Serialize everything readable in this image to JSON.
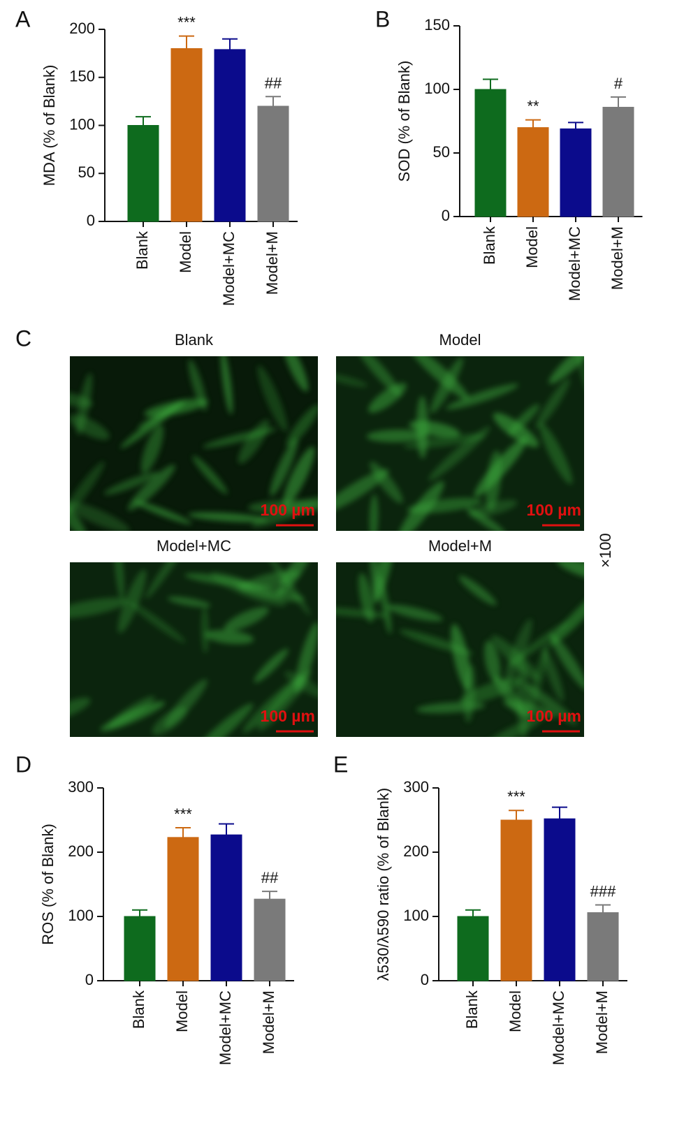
{
  "chart_data": [
    {
      "type": "bar",
      "panel": "A",
      "ylabel": "MDA (% of Blank)",
      "categories": [
        "Blank",
        "Model",
        "Model+MC",
        "Model+M"
      ],
      "values": [
        100,
        180,
        179,
        120
      ],
      "errors": [
        9,
        13,
        11,
        10
      ],
      "annotations": [
        null,
        "***",
        null,
        "##"
      ],
      "colors": [
        "#0e6b1e",
        "#cc6912",
        "#0b0b8c",
        "#7a7a7a"
      ],
      "ylim": [
        0,
        200
      ],
      "yticks": [
        0,
        50,
        100,
        150,
        200
      ]
    },
    {
      "type": "bar",
      "panel": "B",
      "ylabel": "SOD (% of Blank)",
      "categories": [
        "Blank",
        "Model",
        "Model+MC",
        "Model+M"
      ],
      "values": [
        100,
        70,
        69,
        86
      ],
      "errors": [
        8,
        6,
        5,
        8
      ],
      "annotations": [
        null,
        "**",
        null,
        "#"
      ],
      "colors": [
        "#0e6b1e",
        "#cc6912",
        "#0b0b8c",
        "#7a7a7a"
      ],
      "ylim": [
        0,
        150
      ],
      "yticks": [
        0,
        50,
        100,
        150
      ]
    },
    {
      "type": "bar",
      "panel": "D",
      "ylabel": "ROS (% of Blank)",
      "categories": [
        "Blank",
        "Model",
        "Model+MC",
        "Model+M"
      ],
      "values": [
        100,
        223,
        227,
        127
      ],
      "errors": [
        10,
        15,
        17,
        12
      ],
      "annotations": [
        null,
        "***",
        null,
        "##"
      ],
      "colors": [
        "#0e6b1e",
        "#cc6912",
        "#0b0b8c",
        "#7a7a7a"
      ],
      "ylim": [
        0,
        300
      ],
      "yticks": [
        0,
        100,
        200,
        300
      ]
    },
    {
      "type": "bar",
      "panel": "E",
      "ylabel": "λ530/λ590 ratio (% of Blank)",
      "categories": [
        "Blank",
        "Model",
        "Model+MC",
        "Model+M"
      ],
      "values": [
        100,
        250,
        252,
        106
      ],
      "errors": [
        10,
        15,
        18,
        12
      ],
      "annotations": [
        null,
        "***",
        null,
        "###"
      ],
      "colors": [
        "#0e6b1e",
        "#cc6912",
        "#0b0b8c",
        "#7a7a7a"
      ],
      "ylim": [
        0,
        300
      ],
      "yticks": [
        0,
        100,
        200,
        300
      ]
    }
  ],
  "panel_c": {
    "panel": "C",
    "magnification": "×100",
    "images": [
      {
        "title": "Blank",
        "scale_bar": "100 µm"
      },
      {
        "title": "Model",
        "scale_bar": "100 µm"
      },
      {
        "title": "Model+MC",
        "scale_bar": "100 µm"
      },
      {
        "title": "Model+M",
        "scale_bar": "100 µm"
      }
    ]
  }
}
